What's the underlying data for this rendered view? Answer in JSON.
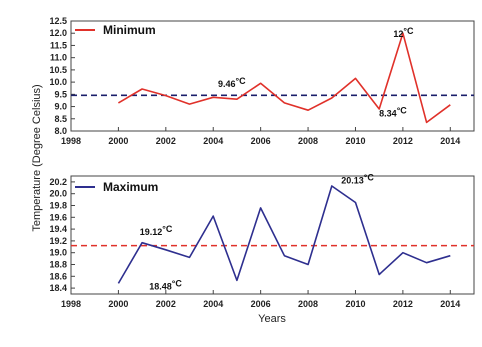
{
  "chart_data": {
    "ylabel": "Temperature (Degree Celsius)",
    "xlabel": "Years",
    "panels": [
      {
        "type": "line",
        "legend": "Minimum",
        "color": "#e0312a",
        "reference_color": "#1b1f6b",
        "x": [
          2000,
          2001,
          2002,
          2003,
          2004,
          2005,
          2006,
          2007,
          2008,
          2009,
          2010,
          2011,
          2012,
          2013,
          2014
        ],
        "y": [
          9.15,
          9.72,
          9.45,
          9.1,
          9.38,
          9.3,
          9.95,
          9.15,
          8.85,
          9.35,
          10.15,
          8.9,
          12.0,
          8.35,
          9.07
        ],
        "reference_line": 9.46,
        "xlim": [
          1998,
          2015
        ],
        "ylim": [
          8.0,
          12.5
        ],
        "xticks": [
          "1998",
          "2000",
          "2002",
          "2004",
          "2006",
          "2008",
          "2010",
          "2012",
          "2014"
        ],
        "yticks": [
          "8.0",
          "8.5",
          "9.0",
          "9.5",
          "10.0",
          "10.5",
          "11.0",
          "11.5",
          "12.0",
          "12.5"
        ],
        "annotations": [
          {
            "value": "9.46",
            "unit": "°C",
            "x": 2004.2,
            "y": 9.8
          },
          {
            "value": "8.34",
            "unit": "°C",
            "x": 2011.0,
            "y": 8.6
          },
          {
            "value": "12",
            "unit": "°C",
            "x": 2011.6,
            "y": 11.85
          }
        ]
      },
      {
        "type": "line",
        "legend": "Maximum",
        "color": "#2e2f8f",
        "reference_color": "#e0312a",
        "x": [
          2000,
          2001,
          2002,
          2003,
          2004,
          2005,
          2006,
          2007,
          2008,
          2009,
          2010,
          2011,
          2012,
          2013,
          2014
        ],
        "y": [
          18.48,
          19.17,
          19.05,
          18.92,
          19.62,
          18.53,
          19.76,
          18.95,
          18.8,
          20.13,
          19.85,
          18.63,
          19.0,
          18.83,
          18.95
        ],
        "reference_line": 19.12,
        "xlim": [
          1998,
          2015
        ],
        "ylim": [
          18.3,
          20.3
        ],
        "xticks": [
          "1998",
          "2000",
          "2002",
          "2004",
          "2006",
          "2008",
          "2010",
          "2012",
          "2014"
        ],
        "yticks": [
          "18.4",
          "18.6",
          "18.8",
          "19.0",
          "19.2",
          "19.4",
          "19.6",
          "19.8",
          "20.0",
          "20.2"
        ],
        "annotations": [
          {
            "value": "19.12",
            "unit": "°C",
            "x": 2000.9,
            "y": 19.3
          },
          {
            "value": "18.48",
            "unit": "°C",
            "x": 2001.3,
            "y": 18.38
          },
          {
            "value": "20.13",
            "unit": "°C",
            "x": 2009.4,
            "y": 20.17
          }
        ]
      }
    ]
  }
}
